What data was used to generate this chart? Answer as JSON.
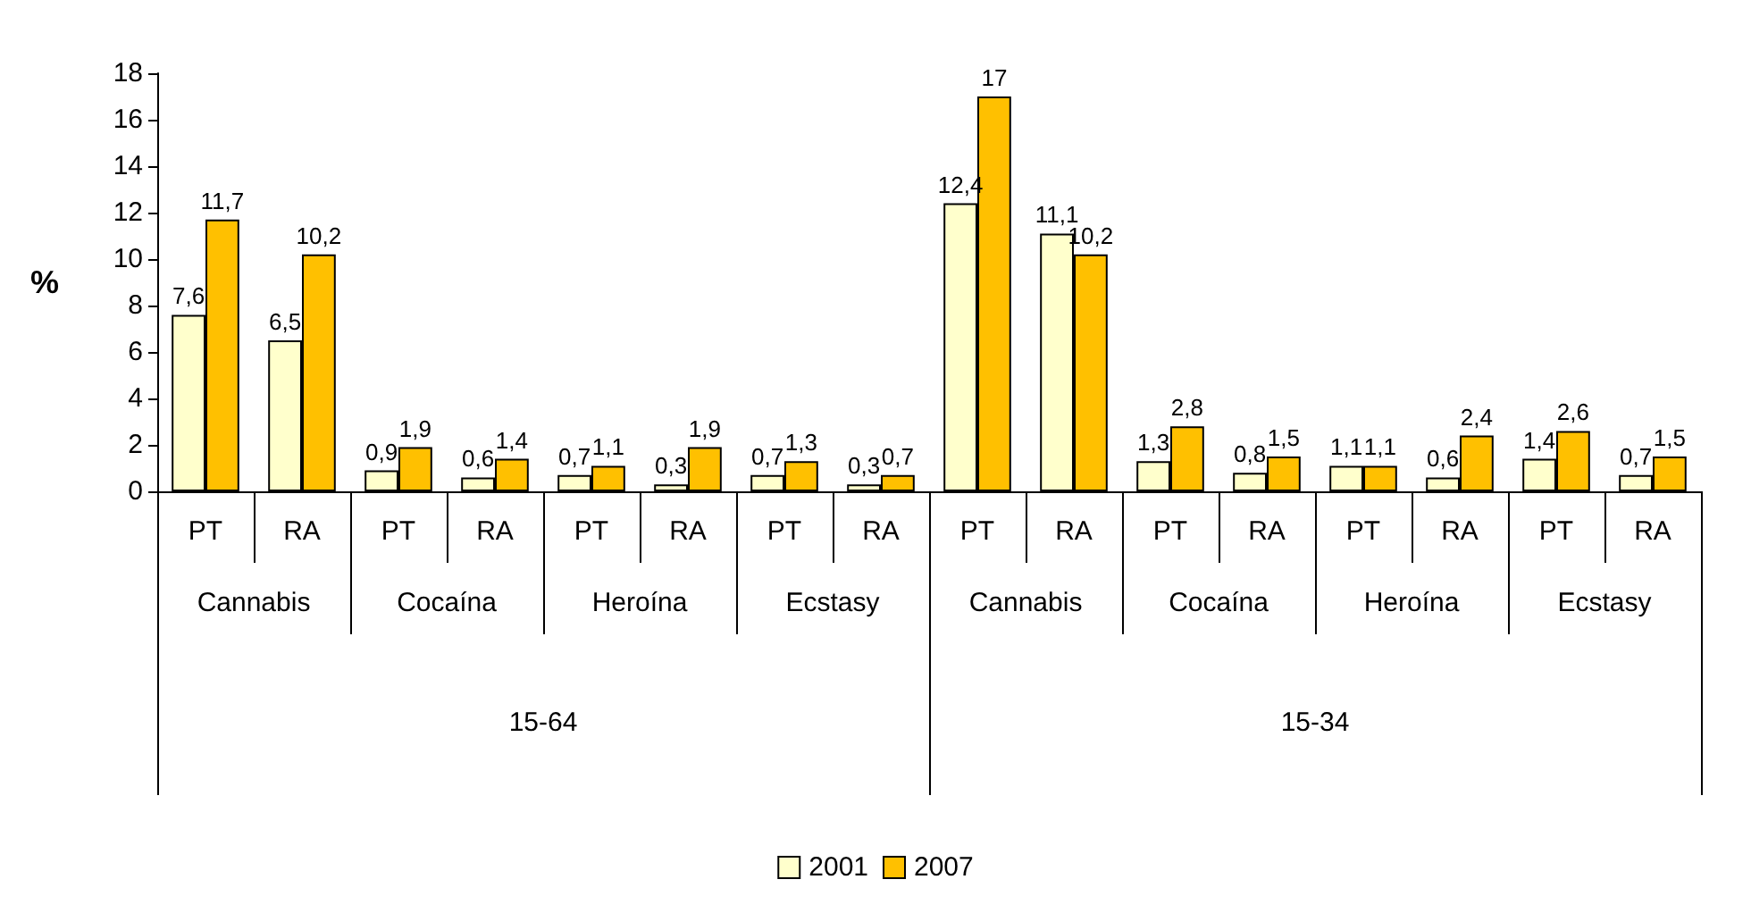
{
  "chart_data": {
    "type": "bar",
    "ylabel": "%",
    "categories": [
      "PT",
      "RA",
      "PT",
      "RA",
      "PT",
      "RA",
      "PT",
      "RA",
      "PT",
      "RA",
      "PT",
      "RA",
      "PT",
      "RA",
      "PT",
      "RA"
    ],
    "annotations": [
      "Cannabis",
      "Cocaína",
      "Heroína",
      "Ecstasy",
      "Cannabis",
      "Cocaína",
      "Heroína",
      "Ecstasy",
      "15-64",
      "15-34"
    ],
    "series": [
      {
        "name": "2001",
        "color": "#ffffcc",
        "values": [
          7.6,
          6.5,
          0.9,
          0.6,
          0.7,
          0.3,
          0.7,
          0.3,
          12.4,
          11.1,
          1.3,
          0.8,
          1.1,
          0.6,
          1.4,
          0.7
        ],
        "value_labels": [
          "7,6",
          "6,5",
          "0,9",
          "0,6",
          "0,7",
          "0,3",
          "0,7",
          "0,3",
          "12,4",
          "11,1",
          "1,3",
          "0,8",
          "1,1",
          "0,6",
          "1,4",
          "0,7"
        ]
      },
      {
        "name": "2007",
        "color": "#ffc000",
        "values": [
          11.7,
          10.2,
          1.9,
          1.4,
          1.1,
          1.9,
          1.3,
          0.7,
          17,
          10.2,
          2.8,
          1.5,
          1.1,
          2.4,
          2.6,
          1.5
        ],
        "value_labels": [
          "11,7",
          "10,2",
          "1,9",
          "1,4",
          "1,1",
          "1,9",
          "1,3",
          "0,7",
          "17",
          "10,2",
          "2,8",
          "1,5",
          "1,1",
          "2,4",
          "2,6",
          "1,5"
        ]
      }
    ],
    "ylim": [
      0,
      18
    ],
    "yticks": [
      0,
      2,
      4,
      6,
      8,
      10,
      12,
      14,
      16,
      18
    ],
    "legend": "bottom",
    "grid": false
  }
}
